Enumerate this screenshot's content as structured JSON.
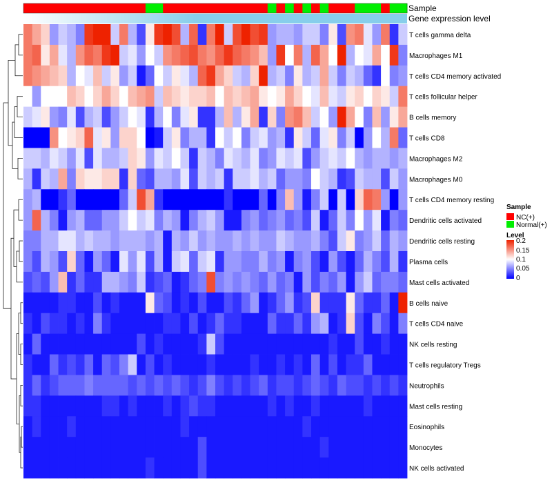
{
  "chart_data": {
    "type": "heatmap",
    "title": "",
    "annotation_tracks": [
      {
        "name": "Sample"
      },
      {
        "name": "Gene expression level"
      }
    ],
    "row_labels": [
      "T cells gamma delta",
      "Macrophages M1",
      "T cells CD4 memory activated",
      "T cells follicular helper",
      "B cells memory",
      "T cells CD8",
      "Macrophages M2",
      "Macrophages M0",
      "T cells CD4 memory resting",
      "Dendritic cells activated",
      "Dendritic cells resting",
      "Plasma cells",
      "Mast cells activated",
      "B cells naive",
      "T cells CD4 naive",
      "NK cells resting",
      "T cells regulatory  Tregs",
      "Neutrophils",
      "Mast cells resting",
      "Eosinophils",
      "Monocytes",
      "NK cells activated"
    ],
    "sample_groups": [
      "NC",
      "NC",
      "NC",
      "NC",
      "NC",
      "NC",
      "NC",
      "NC",
      "NC",
      "NC",
      "NC",
      "NC",
      "NC",
      "NC",
      "Normal",
      "Normal",
      "NC",
      "NC",
      "NC",
      "NC",
      "NC",
      "NC",
      "NC",
      "NC",
      "NC",
      "NC",
      "NC",
      "NC",
      "Normal",
      "NC",
      "Normal",
      "NC",
      "Normal",
      "NC",
      "Normal",
      "NC",
      "NC",
      "NC",
      "Normal",
      "Normal",
      "Normal",
      "NC",
      "Normal",
      "Normal"
    ],
    "values": [
      [
        0.16,
        0.14,
        0.12,
        0.06,
        0.08,
        0.07,
        0.05,
        0.19,
        0.2,
        0.2,
        0.08,
        0.16,
        0.07,
        0.03,
        0.11,
        0.19,
        0.2,
        0.18,
        0.07,
        0.17,
        0.02,
        0.16,
        0.2,
        0.08,
        0.18,
        0.2,
        0.18,
        0.19,
        0.06,
        0.07,
        0.07,
        0.06,
        0.08,
        0.08,
        0.05,
        0.11,
        0.03,
        0.15,
        0.16,
        0.09,
        0.06,
        0.16,
        0.02,
        0.08
      ],
      [
        0.16,
        0.17,
        0.11,
        0.14,
        0.09,
        0.07,
        0.15,
        0.17,
        0.16,
        0.19,
        0.2,
        0.08,
        0.09,
        0.06,
        0.1,
        0.08,
        0.15,
        0.16,
        0.17,
        0.18,
        0.16,
        0.15,
        0.17,
        0.19,
        0.17,
        0.16,
        0.15,
        0.13,
        0.06,
        0.19,
        0.1,
        0.16,
        0.07,
        0.17,
        0.14,
        0.1,
        0.2,
        0.07,
        0.1,
        0.09,
        0.14,
        0.1,
        0.19,
        0.05
      ],
      [
        0.16,
        0.15,
        0.14,
        0.13,
        0.12,
        0.07,
        0.1,
        0.09,
        0.13,
        0.08,
        0.11,
        0.06,
        0.08,
        0.01,
        0.04,
        0.1,
        0.08,
        0.11,
        0.09,
        0.07,
        0.17,
        0.19,
        0.14,
        0.12,
        0.08,
        0.07,
        0.12,
        0.2,
        0.07,
        0.08,
        0.05,
        0.11,
        0.07,
        0.08,
        0.14,
        0.08,
        0.05,
        0.08,
        0.07,
        0.04,
        0.02,
        0.1,
        0.05,
        0.06
      ],
      [
        0.1,
        0.06,
        0.1,
        0.1,
        0.1,
        0.13,
        0.12,
        0.1,
        0.12,
        0.14,
        0.12,
        0.1,
        0.13,
        0.14,
        0.15,
        0.08,
        0.13,
        0.12,
        0.11,
        0.12,
        0.12,
        0.13,
        0.1,
        0.13,
        0.12,
        0.13,
        0.14,
        0.11,
        0.1,
        0.11,
        0.14,
        0.12,
        0.1,
        0.09,
        0.13,
        0.09,
        0.08,
        0.11,
        0.12,
        0.1,
        0.12,
        0.11,
        0.08,
        0.16
      ],
      [
        0.08,
        0.09,
        0.11,
        0.06,
        0.05,
        0.09,
        0.03,
        0.07,
        0.08,
        0.03,
        0.06,
        0.08,
        0.1,
        0.09,
        0.02,
        0.07,
        0.1,
        0.05,
        0.09,
        0.11,
        0.02,
        0.02,
        0.07,
        0.13,
        0.07,
        0.11,
        0.14,
        0.02,
        0.12,
        0.05,
        0.15,
        0.16,
        0.13,
        0.08,
        0.1,
        0.06,
        0.2,
        0.14,
        0.1,
        0.05,
        0.13,
        0.06,
        0.11,
        0.14
      ],
      [
        0.0,
        0.0,
        0.0,
        0.15,
        0.1,
        0.11,
        0.12,
        0.17,
        0.09,
        0.11,
        0.06,
        0.12,
        0.12,
        0.1,
        0.0,
        0.01,
        0.08,
        0.11,
        0.05,
        0.07,
        0.07,
        0.02,
        0.1,
        0.08,
        0.1,
        0.05,
        0.08,
        0.09,
        0.06,
        0.07,
        0.02,
        0.11,
        0.08,
        0.04,
        0.09,
        0.11,
        0.05,
        0.08,
        0.0,
        0.06,
        0.1,
        0.07,
        0.16,
        0.04
      ],
      [
        0.08,
        0.08,
        0.07,
        0.09,
        0.08,
        0.06,
        0.09,
        0.03,
        0.09,
        0.07,
        0.07,
        0.08,
        0.12,
        0.11,
        0.06,
        0.09,
        0.08,
        0.1,
        0.08,
        0.02,
        0.08,
        0.07,
        0.05,
        0.09,
        0.08,
        0.07,
        0.09,
        0.05,
        0.06,
        0.09,
        0.08,
        0.09,
        0.03,
        0.06,
        0.08,
        0.09,
        0.08,
        0.1,
        0.07,
        0.06,
        0.07,
        0.07,
        0.06,
        0.07
      ],
      [
        0.07,
        0.02,
        0.08,
        0.07,
        0.14,
        0.05,
        0.12,
        0.11,
        0.11,
        0.12,
        0.12,
        0.02,
        0.12,
        0.04,
        0.03,
        0.07,
        0.07,
        0.06,
        0.09,
        0.03,
        0.08,
        0.07,
        0.08,
        0.02,
        0.08,
        0.08,
        0.09,
        0.07,
        0.08,
        0.04,
        0.06,
        0.06,
        0.05,
        0.1,
        0.08,
        0.07,
        0.02,
        0.03,
        0.08,
        0.07,
        0.07,
        0.03,
        0.08,
        0.06
      ],
      [
        0.06,
        0.07,
        0.0,
        0.0,
        0.02,
        0.04,
        0.0,
        0.0,
        0.0,
        0.0,
        0.0,
        0.04,
        0.08,
        0.18,
        0.14,
        0.02,
        0.0,
        0.0,
        0.0,
        0.0,
        0.0,
        0.0,
        0.0,
        0.02,
        0.0,
        0.0,
        0.0,
        0.04,
        0.0,
        0.05,
        0.13,
        0.06,
        0.01,
        0.05,
        0.08,
        0.0,
        0.08,
        0.0,
        0.12,
        0.17,
        0.16,
        0.06,
        0.0,
        0.06
      ],
      [
        0.06,
        0.17,
        0.07,
        0.05,
        0.01,
        0.06,
        0.07,
        0.04,
        0.04,
        0.06,
        0.06,
        0.08,
        0.1,
        0.08,
        0.09,
        0.05,
        0.07,
        0.06,
        0.01,
        0.05,
        0.07,
        0.08,
        0.06,
        0.01,
        0.01,
        0.05,
        0.06,
        0.04,
        0.05,
        0.06,
        0.04,
        0.05,
        0.03,
        0.08,
        0.01,
        0.04,
        0.08,
        0.05,
        0.1,
        0.06,
        0.09,
        0.01,
        0.05,
        0.04
      ],
      [
        0.05,
        0.05,
        0.07,
        0.07,
        0.09,
        0.09,
        0.07,
        0.08,
        0.07,
        0.07,
        0.06,
        0.07,
        0.07,
        0.07,
        0.06,
        0.07,
        0.01,
        0.07,
        0.06,
        0.08,
        0.06,
        0.07,
        0.06,
        0.06,
        0.07,
        0.06,
        0.07,
        0.06,
        0.06,
        0.08,
        0.07,
        0.06,
        0.06,
        0.07,
        0.05,
        0.03,
        0.08,
        0.11,
        0.05,
        0.06,
        0.08,
        0.04,
        0.07,
        0.06
      ],
      [
        0.05,
        0.03,
        0.07,
        0.06,
        0.03,
        0.12,
        0.04,
        0.01,
        0.06,
        0.04,
        0.01,
        0.09,
        0.06,
        0.09,
        0.03,
        0.07,
        0.01,
        0.08,
        0.09,
        0.04,
        0.08,
        0.09,
        0.02,
        0.06,
        0.06,
        0.05,
        0.05,
        0.07,
        0.05,
        0.06,
        0.01,
        0.05,
        0.06,
        0.03,
        0.01,
        0.06,
        0.03,
        0.01,
        0.04,
        0.07,
        0.05,
        0.03,
        0.07,
        0.02
      ],
      [
        0.03,
        0.04,
        0.03,
        0.06,
        0.13,
        0.02,
        0.04,
        0.02,
        0.02,
        0.07,
        0.07,
        0.06,
        0.05,
        0.08,
        0.02,
        0.03,
        0.04,
        0.01,
        0.02,
        0.04,
        0.05,
        0.18,
        0.05,
        0.06,
        0.05,
        0.06,
        0.05,
        0.04,
        0.06,
        0.04,
        0.05,
        0.01,
        0.06,
        0.03,
        0.05,
        0.04,
        0.06,
        0.01,
        0.06,
        0.08,
        0.04,
        0.05,
        0.05,
        0.04
      ],
      [
        0.01,
        0.01,
        0.01,
        0.01,
        0.02,
        0.02,
        0.01,
        0.01,
        0.03,
        0.01,
        0.02,
        0.01,
        0.01,
        0.01,
        0.11,
        0.04,
        0.03,
        0.01,
        0.02,
        0.01,
        0.03,
        0.01,
        0.01,
        0.03,
        0.02,
        0.04,
        0.06,
        0.01,
        0.02,
        0.04,
        0.06,
        0.02,
        0.03,
        0.12,
        0.02,
        0.02,
        0.02,
        0.11,
        0.04,
        0.02,
        0.02,
        0.04,
        0.01,
        0.2
      ],
      [
        0.02,
        0.01,
        0.03,
        0.02,
        0.02,
        0.01,
        0.02,
        0.01,
        0.05,
        0.02,
        0.01,
        0.01,
        0.01,
        0.01,
        0.01,
        0.01,
        0.02,
        0.02,
        0.01,
        0.03,
        0.01,
        0.02,
        0.04,
        0.02,
        0.02,
        0.01,
        0.01,
        0.01,
        0.04,
        0.02,
        0.02,
        0.04,
        0.02,
        0.06,
        0.07,
        0.01,
        0.02,
        0.12,
        0.03,
        0.01,
        0.05,
        0.03,
        0.01,
        0.05
      ],
      [
        0.01,
        0.04,
        0.01,
        0.01,
        0.01,
        0.01,
        0.01,
        0.01,
        0.01,
        0.01,
        0.01,
        0.01,
        0.01,
        0.03,
        0.01,
        0.02,
        0.01,
        0.01,
        0.01,
        0.01,
        0.02,
        0.08,
        0.03,
        0.01,
        0.01,
        0.01,
        0.01,
        0.01,
        0.01,
        0.01,
        0.01,
        0.01,
        0.01,
        0.01,
        0.01,
        0.02,
        0.01,
        0.01,
        0.03,
        0.01,
        0.01,
        0.02,
        0.01,
        0.01
      ],
      [
        0.02,
        0.01,
        0.01,
        0.04,
        0.02,
        0.03,
        0.02,
        0.04,
        0.01,
        0.04,
        0.03,
        0.05,
        0.08,
        0.01,
        0.03,
        0.01,
        0.02,
        0.01,
        0.01,
        0.01,
        0.01,
        0.02,
        0.01,
        0.01,
        0.01,
        0.01,
        0.02,
        0.01,
        0.01,
        0.02,
        0.01,
        0.02,
        0.01,
        0.04,
        0.01,
        0.03,
        0.01,
        0.02,
        0.02,
        0.04,
        0.01,
        0.01,
        0.01,
        0.01
      ],
      [
        0.02,
        0.04,
        0.02,
        0.03,
        0.04,
        0.04,
        0.04,
        0.05,
        0.04,
        0.04,
        0.04,
        0.04,
        0.03,
        0.04,
        0.03,
        0.04,
        0.03,
        0.04,
        0.03,
        0.02,
        0.03,
        0.05,
        0.03,
        0.02,
        0.03,
        0.02,
        0.03,
        0.04,
        0.02,
        0.03,
        0.03,
        0.02,
        0.03,
        0.04,
        0.03,
        0.02,
        0.04,
        0.03,
        0.03,
        0.02,
        0.03,
        0.02,
        0.03,
        0.02
      ],
      [
        0.02,
        0.02,
        0.01,
        0.01,
        0.01,
        0.01,
        0.01,
        0.01,
        0.01,
        0.02,
        0.02,
        0.01,
        0.02,
        0.01,
        0.01,
        0.01,
        0.02,
        0.01,
        0.02,
        0.03,
        0.02,
        0.02,
        0.01,
        0.01,
        0.01,
        0.01,
        0.01,
        0.01,
        0.02,
        0.01,
        0.02,
        0.01,
        0.01,
        0.02,
        0.01,
        0.01,
        0.01,
        0.01,
        0.01,
        0.02,
        0.01,
        0.01,
        0.01,
        0.01
      ],
      [
        0.01,
        0.02,
        0.01,
        0.01,
        0.01,
        0.02,
        0.01,
        0.01,
        0.01,
        0.01,
        0.01,
        0.01,
        0.01,
        0.01,
        0.01,
        0.01,
        0.01,
        0.01,
        0.02,
        0.01,
        0.01,
        0.01,
        0.01,
        0.01,
        0.01,
        0.01,
        0.01,
        0.01,
        0.01,
        0.01,
        0.01,
        0.01,
        0.02,
        0.01,
        0.01,
        0.01,
        0.01,
        0.01,
        0.01,
        0.01,
        0.01,
        0.01,
        0.01,
        0.01
      ],
      [
        0.01,
        0.01,
        0.01,
        0.01,
        0.01,
        0.01,
        0.01,
        0.01,
        0.01,
        0.01,
        0.01,
        0.01,
        0.01,
        0.01,
        0.01,
        0.01,
        0.01,
        0.01,
        0.01,
        0.01,
        0.03,
        0.01,
        0.01,
        0.01,
        0.01,
        0.01,
        0.01,
        0.01,
        0.01,
        0.01,
        0.01,
        0.01,
        0.01,
        0.01,
        0.02,
        0.01,
        0.01,
        0.01,
        0.01,
        0.01,
        0.01,
        0.01,
        0.01,
        0.01
      ],
      [
        0.01,
        0.01,
        0.01,
        0.01,
        0.01,
        0.01,
        0.01,
        0.01,
        0.01,
        0.01,
        0.01,
        0.01,
        0.01,
        0.01,
        0.02,
        0.01,
        0.01,
        0.01,
        0.01,
        0.01,
        0.03,
        0.01,
        0.01,
        0.01,
        0.01,
        0.01,
        0.01,
        0.01,
        0.01,
        0.01,
        0.01,
        0.01,
        0.01,
        0.01,
        0.01,
        0.01,
        0.01,
        0.01,
        0.01,
        0.01,
        0.01,
        0.01,
        0.01,
        0.01
      ]
    ],
    "value_range": [
      0,
      0.2
    ],
    "legend": {
      "sample": {
        "title": "Sample",
        "entries": [
          {
            "label": "NC(+)",
            "color": "#ff0000"
          },
          {
            "label": "Normal(+)",
            "color": "#00ee00"
          }
        ]
      },
      "level": {
        "title": "Level",
        "ticks": [
          "0.2",
          "0.15",
          "0.1",
          "0.05",
          "0"
        ]
      },
      "placement": "right"
    },
    "colors": {
      "low": "#0000ff",
      "mid": "#ffffff",
      "high": "#ee2200",
      "expression_track": "#87ceeb"
    }
  }
}
